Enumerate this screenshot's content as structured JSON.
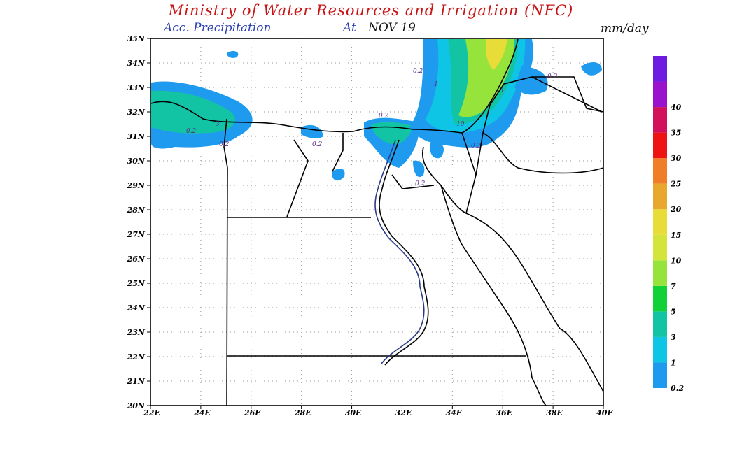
{
  "header": {
    "title": "Ministry of Water Resources and Irrigation (NFC)",
    "subtitle": "Acc. Precipitation",
    "at": "At",
    "date": "NOV 19",
    "units": "mm/day"
  },
  "map": {
    "lat": [
      {
        "value": 35,
        "label": "35N"
      },
      {
        "value": 34,
        "label": "34N"
      },
      {
        "value": 33,
        "label": "33N"
      },
      {
        "value": 32,
        "label": "32N"
      },
      {
        "value": 31,
        "label": "31N"
      },
      {
        "value": 30,
        "label": "30N"
      },
      {
        "value": 29,
        "label": "29N"
      },
      {
        "value": 28,
        "label": "28N"
      },
      {
        "value": 27,
        "label": "27N"
      },
      {
        "value": 26,
        "label": "26N"
      },
      {
        "value": 25,
        "label": "25N"
      },
      {
        "value": 24,
        "label": "24N"
      },
      {
        "value": 23,
        "label": "23N"
      },
      {
        "value": 22,
        "label": "22N"
      },
      {
        "value": 21,
        "label": "21N"
      },
      {
        "value": 20,
        "label": "20N"
      }
    ],
    "lon": [
      {
        "value": 22,
        "label": "22E"
      },
      {
        "value": 24,
        "label": "24E"
      },
      {
        "value": 26,
        "label": "26E"
      },
      {
        "value": 28,
        "label": "28E"
      },
      {
        "value": 30,
        "label": "30E"
      },
      {
        "value": 32,
        "label": "32E"
      },
      {
        "value": 34,
        "label": "34E"
      },
      {
        "value": 36,
        "label": "36E"
      },
      {
        "value": 38,
        "label": "38E"
      },
      {
        "value": 40,
        "label": "40E"
      }
    ],
    "contour_labels": [
      "0.2",
      "0.2",
      "0.2",
      "3",
      "0.2",
      "0.2",
      "0.2",
      "1",
      "10",
      "0.2",
      "0.2",
      "1"
    ]
  },
  "colorbar": {
    "levels": [
      0.2,
      1,
      3,
      5,
      7,
      10,
      15,
      20,
      25,
      30,
      35,
      40
    ],
    "colors": [
      "#1e9bef",
      "#0ec5e5",
      "#12c4a4",
      "#10d236",
      "#96e33b",
      "#d3e53a",
      "#e8dc38",
      "#e8a82e",
      "#ef7e26",
      "#ef1414",
      "#d2115a",
      "#9a12cc",
      "#6e1ae0"
    ]
  }
}
